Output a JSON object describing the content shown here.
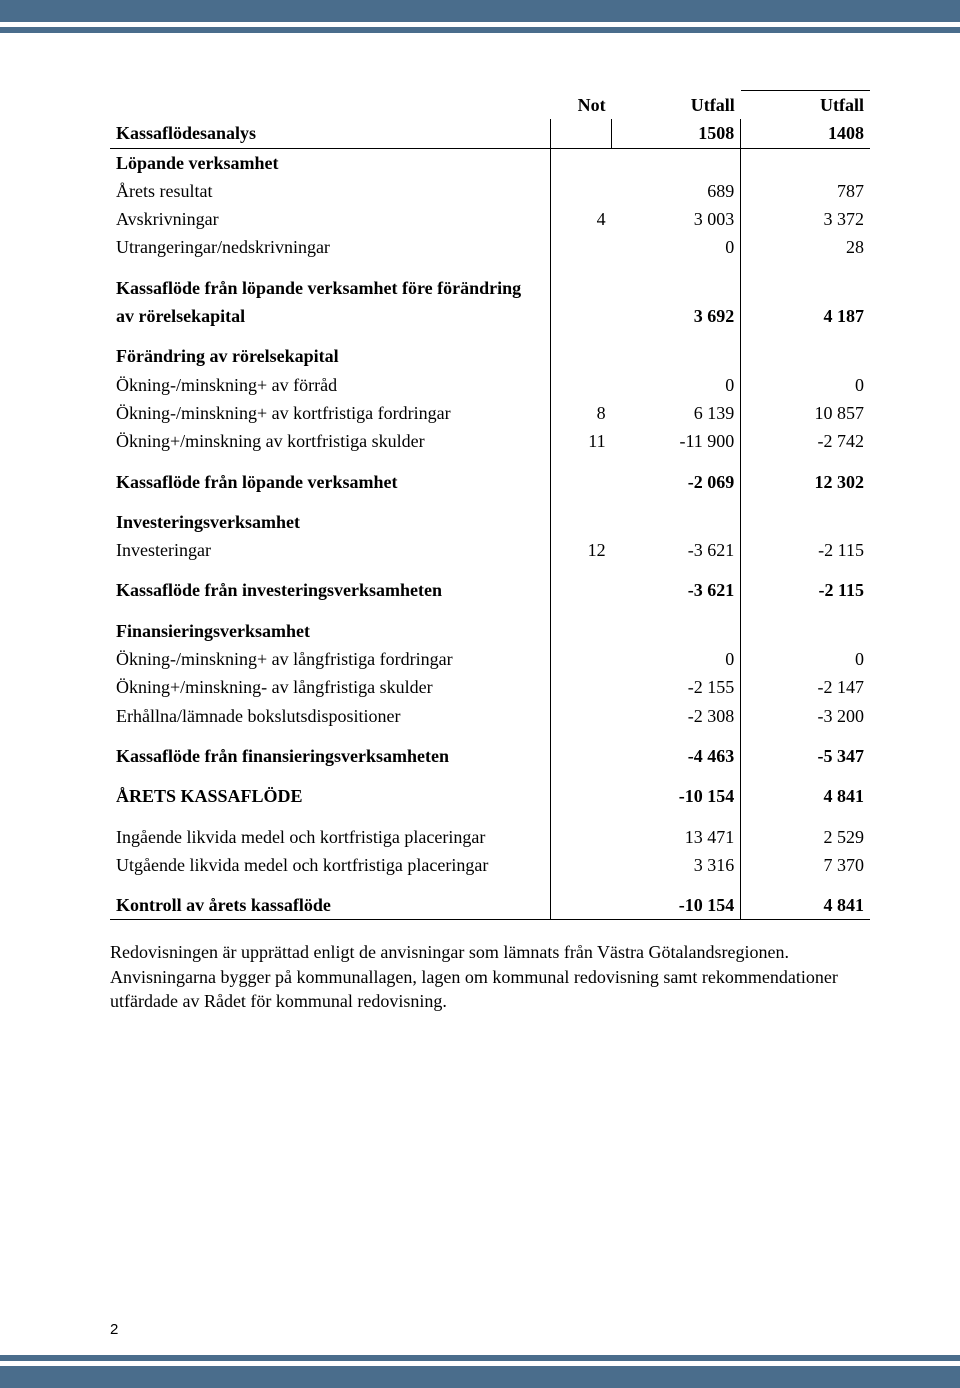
{
  "decor": {
    "band_color": "#4a6d8c",
    "page_bg": "#ffffff"
  },
  "table": {
    "header": {
      "title": "Kassaflödesanalys",
      "col_not": "Not",
      "col_u1_top": "Utfall",
      "col_u1_bot": "1508",
      "col_u2_top": "Utfall",
      "col_u2_bot": "1408"
    },
    "sections": [
      {
        "heading": "Löpande verksamhet"
      },
      {
        "label": "Årets resultat",
        "not": "",
        "v1": "689",
        "v2": "787"
      },
      {
        "label": "Avskrivningar",
        "not": "4",
        "v1": "3 003",
        "v2": "3 372"
      },
      {
        "label": "Utrangeringar/nedskrivningar",
        "not": "",
        "v1": "0",
        "v2": "28"
      },
      {
        "spacer": true
      },
      {
        "heading": "Kassaflöde från löpande verksamhet före förändring"
      },
      {
        "label": "av rörelsekapital",
        "bold": true,
        "not": "",
        "v1": "3 692",
        "v2": "4 187"
      },
      {
        "spacer": true
      },
      {
        "heading": "Förändring av rörelsekapital"
      },
      {
        "label": "Ökning-/minskning+ av förråd",
        "not": "",
        "v1": "0",
        "v2": "0"
      },
      {
        "label": "Ökning-/minskning+ av kortfristiga fordringar",
        "not": "8",
        "v1": "6 139",
        "v2": "10 857"
      },
      {
        "label": "Ökning+/minskning av kortfristiga skulder",
        "not": "11",
        "v1": "-11 900",
        "v2": "-2 742"
      },
      {
        "spacer": true
      },
      {
        "label": "Kassaflöde från löpande verksamhet",
        "bold": true,
        "not": "",
        "v1": "-2 069",
        "v2": "12 302"
      },
      {
        "spacer": true
      },
      {
        "heading": "Investeringsverksamhet"
      },
      {
        "label": "Investeringar",
        "not": "12",
        "v1": "-3 621",
        "v2": "-2 115"
      },
      {
        "spacer": true
      },
      {
        "label": "Kassaflöde från investeringsverksamheten",
        "bold": true,
        "not": "",
        "v1": "-3 621",
        "v2": "-2 115"
      },
      {
        "spacer": true
      },
      {
        "heading": "Finansieringsverksamhet"
      },
      {
        "label": "Ökning-/minskning+ av långfristiga fordringar",
        "not": "",
        "v1": "0",
        "v2": "0"
      },
      {
        "label": "Ökning+/minskning- av långfristiga skulder",
        "not": "",
        "v1": "-2 155",
        "v2": "-2 147"
      },
      {
        "label": "Erhållna/lämnade bokslutsdispositioner",
        "not": "",
        "v1": "-2 308",
        "v2": "-3 200"
      },
      {
        "spacer": true
      },
      {
        "label": "Kassaflöde från finansieringsverksamheten",
        "bold": true,
        "not": "",
        "v1": "-4 463",
        "v2": "-5 347"
      },
      {
        "spacer": true
      },
      {
        "label": "ÅRETS KASSAFLÖDE",
        "bold": true,
        "not": "",
        "v1": "-10 154",
        "v2": "4 841"
      },
      {
        "spacer": true
      },
      {
        "label": "Ingående likvida medel och kortfristiga placeringar",
        "not": "",
        "v1": "13 471",
        "v2": "2 529"
      },
      {
        "label": "Utgående likvida medel och kortfristiga placeringar",
        "not": "",
        "v1": "3 316",
        "v2": "7 370"
      },
      {
        "spacer": true
      },
      {
        "label": "Kontroll av årets kassaflöde",
        "bold": true,
        "bottom": true,
        "not": "",
        "v1": "-10 154",
        "v2": "4 841"
      }
    ]
  },
  "footnote": {
    "p1": "Redovisningen är upprättad enligt de anvisningar som lämnats från Västra Götalandsregionen. Anvisningarna bygger på kommunallagen, lagen om kommunal redovisning samt rekommendationer utfärdade av Rådet för kommunal redovisning."
  },
  "page_number": "2"
}
